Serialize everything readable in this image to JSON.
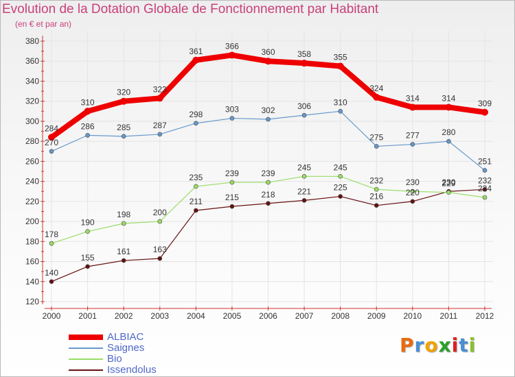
{
  "title": "Evolution de la Dotation Globale de Fonctionnement par Habitant",
  "subtitle": "(en € et par an)",
  "logo": {
    "text": "Proxiti",
    "colors": [
      "#e96b10",
      "#4a8fd4",
      "#f2a200",
      "#2aa02a",
      "#e02020",
      "#4a8fd4",
      "#8ac02a"
    ]
  },
  "chart_data": {
    "type": "line",
    "title": "Evolution de la Dotation Globale de Fonctionnement par Habitant",
    "subtitle": "(en € et par an)",
    "xlabel": "",
    "ylabel": "",
    "ylim": [
      120,
      380
    ],
    "yticks": [
      120,
      140,
      160,
      180,
      200,
      220,
      240,
      260,
      280,
      300,
      320,
      340,
      360,
      380
    ],
    "categories": [
      "2000",
      "2001",
      "2002",
      "2003",
      "2004",
      "2005",
      "2006",
      "2007",
      "2008",
      "2009",
      "2010",
      "2011",
      "2012"
    ],
    "series": [
      {
        "name": "ALBIAC",
        "color": "#ee0000",
        "values": [
          284,
          310,
          320,
          323,
          361,
          366,
          360,
          358,
          355,
          324,
          314,
          314,
          309
        ]
      },
      {
        "name": "Saignes",
        "color": "#6699cc",
        "values": [
          270,
          286,
          285,
          287,
          298,
          303,
          302,
          306,
          310,
          275,
          277,
          280,
          251
        ]
      },
      {
        "name": "Bio",
        "color": "#99dd66",
        "values": [
          178,
          190,
          198,
          200,
          235,
          239,
          239,
          245,
          245,
          232,
          230,
          229,
          224
        ]
      },
      {
        "name": "Issendolus",
        "color": "#661111",
        "values": [
          140,
          155,
          161,
          163,
          211,
          215,
          218,
          221,
          225,
          216,
          220,
          230,
          232
        ]
      }
    ],
    "grid": true,
    "legend": "bottom-left"
  }
}
